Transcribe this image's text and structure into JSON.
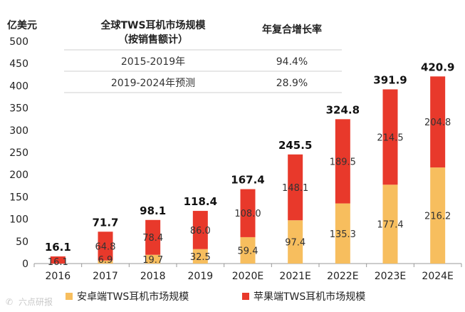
{
  "colors": {
    "android": "#F7BE5E",
    "apple": "#E8392B",
    "axis": "#999999",
    "grid": "#dddddd"
  },
  "chart_data": {
    "type": "bar",
    "stacked": true,
    "categories": [
      "2016",
      "2017",
      "2018",
      "2019",
      "2020E",
      "2021E",
      "2022E",
      "2023E",
      "2024E"
    ],
    "series": [
      {
        "name": "安卓端TWS耳机市场规模",
        "values": [
          null,
          6.9,
          19.7,
          32.5,
          59.4,
          97.4,
          135.3,
          177.4,
          216.2
        ]
      },
      {
        "name": "苹果端TWS耳机市场规模",
        "values": [
          16.1,
          64.8,
          78.4,
          86.0,
          108.0,
          148.1,
          189.5,
          214.5,
          204.8
        ]
      }
    ],
    "series_labels": [
      [
        "",
        "6.9",
        "19.7",
        "32.5",
        "59.4",
        "97.4",
        "135.3",
        "177.4",
        "216.2"
      ],
      [
        "16.1",
        "64.8",
        "78.4",
        "86.0",
        "108.0",
        "148.1",
        "189.5",
        "214.5",
        "204.8"
      ]
    ],
    "totals": [
      16.1,
      71.7,
      98.1,
      118.4,
      167.4,
      245.5,
      324.8,
      391.9,
      420.9
    ],
    "total_labels": [
      "16.1",
      "71.7",
      "98.1",
      "118.4",
      "167.4",
      "245.5",
      "324.8",
      "391.9",
      "420.9"
    ],
    "ylabel": "亿美元",
    "ylim": [
      0,
      500
    ],
    "yticks": [
      0,
      50,
      100,
      150,
      200,
      250,
      300,
      350,
      400,
      450,
      500
    ],
    "legend_position": "bottom"
  },
  "table": {
    "col1_header_line1": "全球TWS耳机市场规模",
    "col1_header_line2": "（按销售额计）",
    "col2_header": "年复合增长率",
    "rows": [
      {
        "period": "2015-2019年",
        "cagr": "94.4%"
      },
      {
        "period": "2019-2024年预测",
        "cagr": "28.9%"
      }
    ]
  },
  "watermark": "六点研报"
}
